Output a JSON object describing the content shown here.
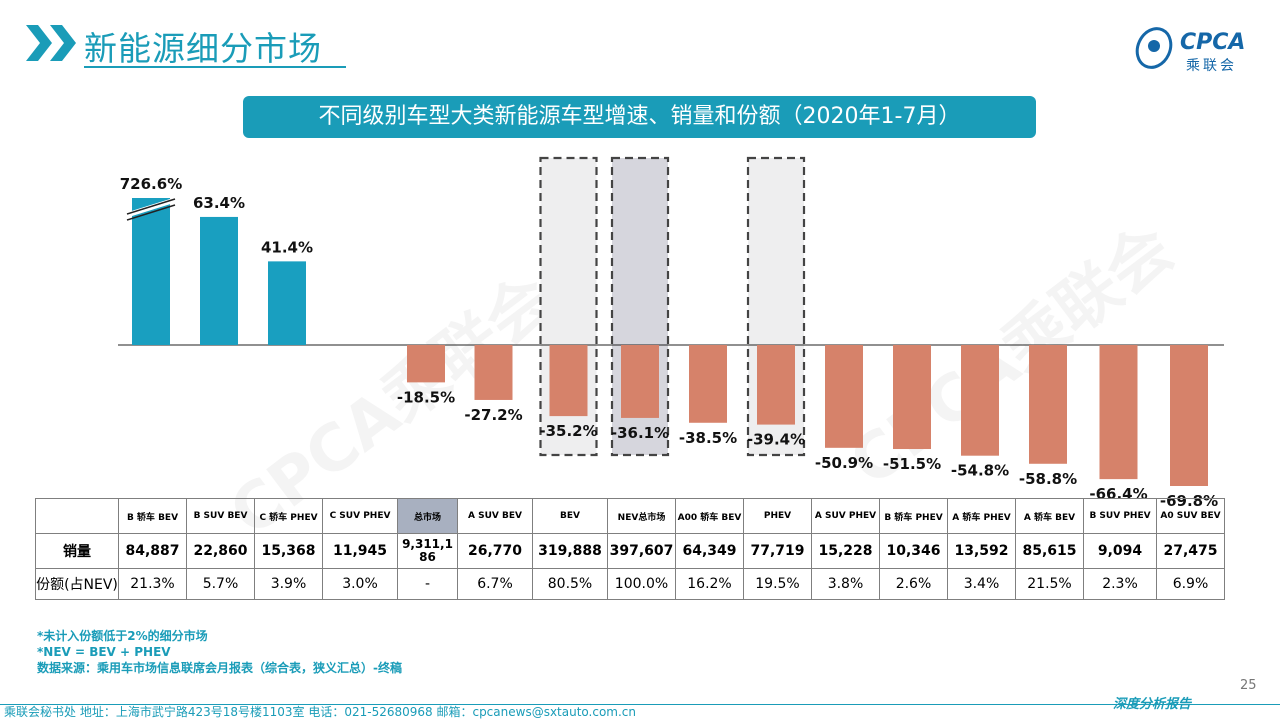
{
  "page": {
    "title": "新能源细分市场",
    "banner": "不同级别车型大类新能源车型增速、销量和份额（2020年1-7月）",
    "logo_text": "CPCA",
    "logo_cn": "乘联会",
    "watermark": "CPCA乘联会",
    "page_number": "25",
    "footer": "乘联会秘书处   地址：上海市武宁路423号18号楼1103室   电话：021-52680968   邮箱：cpcanews@sxtauto.com.cn",
    "footer_right": "深度分析报告",
    "notes": [
      "*未计入份额低于2%的细分市场",
      "*NEV = BEV + PHEV",
      "数据来源：乘用车市场信息联席会月报表（综合表，狭义汇总）-终稿"
    ],
    "colors": {
      "accent": "#1a9cb8",
      "positive": "#199fc0",
      "negative": "#d6826a",
      "highlight": "#eeeeef",
      "highlight_dark": "#d6d6dd"
    }
  },
  "chart_data": {
    "type": "bar",
    "categories": [
      "B 轿车 BEV",
      "B SUV BEV",
      "C 轿车 PHEV",
      "C SUV PHEV",
      "总市场",
      "A SUV BEV",
      "BEV",
      "NEV总市场",
      "A00 轿车 BEV",
      "PHEV",
      "A SUV PHEV",
      "B 轿车 PHEV",
      "A 轿车 PHEV",
      "A 轿车 BEV",
      "B SUV PHEV",
      "A0 SUV BEV"
    ],
    "values": [
      726.6,
      63.4,
      41.4,
      null,
      -18.5,
      -27.2,
      -35.2,
      -36.1,
      -38.5,
      -39.4,
      -50.9,
      -51.5,
      -54.8,
      -58.8,
      -66.4,
      -69.8
    ],
    "labels": [
      "726.6%",
      "63.4%",
      "41.4%",
      "",
      "-18.5%",
      "-27.2%",
      "-35.2%",
      "-36.1%",
      "-38.5%",
      "-39.4%",
      "-50.9%",
      "-51.5%",
      "-54.8%",
      "-58.8%",
      "-66.4%",
      "-69.8%"
    ],
    "broken_axis_value": 726.6,
    "highlighted": [
      "BEV",
      "NEV总市场",
      "PHEV"
    ],
    "table": {
      "row_labels": [
        "销量",
        "份额(占NEV)"
      ],
      "sales": [
        "84,887",
        "22,860",
        "15,368",
        "11,945",
        "9,311,186",
        "26,770",
        "319,888",
        "397,607",
        "64,349",
        "77,719",
        "15,228",
        "10,346",
        "13,592",
        "85,615",
        "9,094",
        "27,475"
      ],
      "share": [
        "21.3%",
        "5.7%",
        "3.9%",
        "3.0%",
        "-",
        "6.7%",
        "80.5%",
        "100.0%",
        "16.2%",
        "19.5%",
        "3.8%",
        "2.6%",
        "3.4%",
        "21.5%",
        "2.3%",
        "6.9%"
      ]
    }
  }
}
